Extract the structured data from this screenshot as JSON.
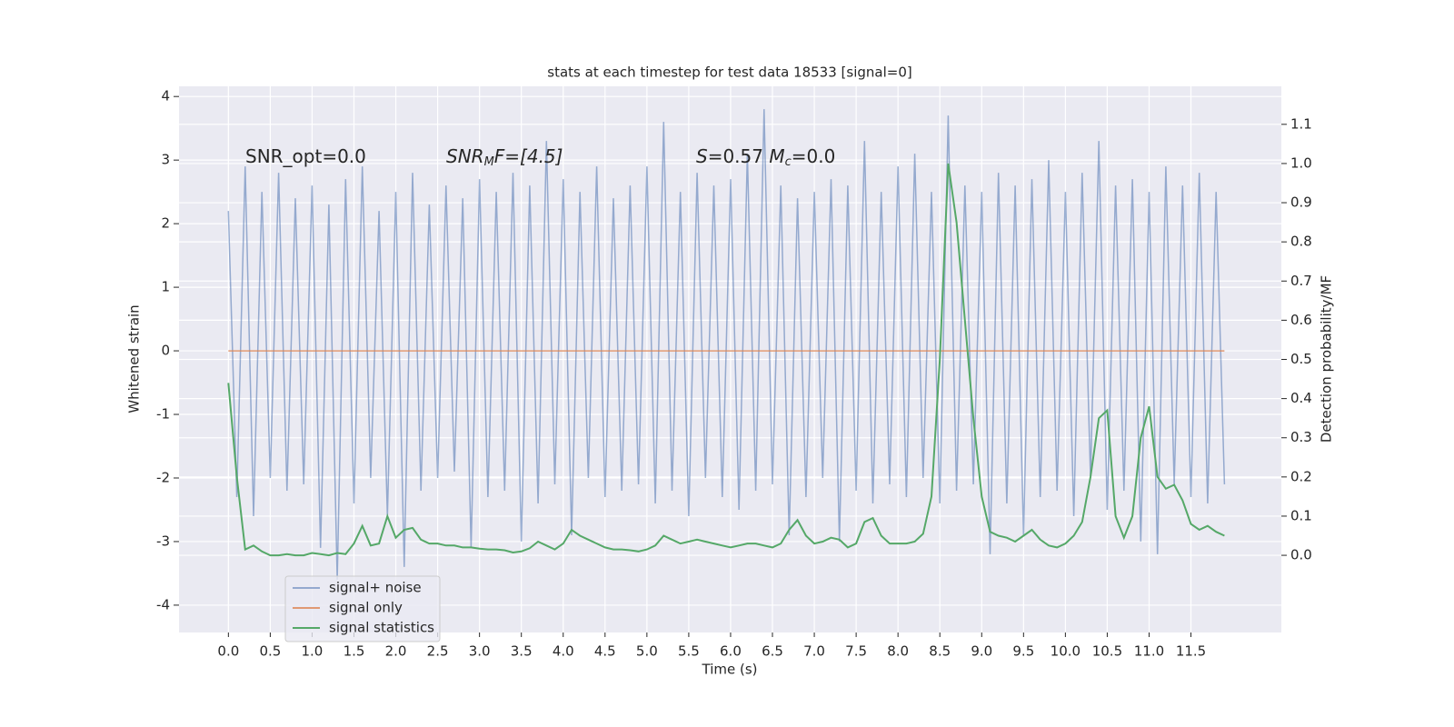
{
  "chart_data": {
    "type": "line",
    "title": "stats at each timestep for test data 18533 [signal=0]",
    "xlabel": "Time (s)",
    "ylabel": "Whitened strain",
    "y2label": "Detection probability/MF",
    "annotations": [
      {
        "parts": [
          "SNR_opt=0.0"
        ]
      },
      {
        "parts": [
          "SNR",
          "M",
          "F=[4.5]"
        ]
      },
      {
        "parts": [
          "S",
          "=0.57   ",
          "M",
          "c",
          "=0.0"
        ]
      }
    ],
    "xlim": [
      -0.59,
      12.58
    ],
    "ylim": [
      -4.43,
      4.16
    ],
    "y2lim": [
      -0.197,
      1.197
    ],
    "xticks": [
      {
        "value": 0,
        "label": "0.0"
      },
      0.5,
      {
        "value": 1,
        "label": "1.0"
      },
      1.5,
      {
        "value": 2,
        "label": "2.0"
      },
      2.5,
      {
        "value": 3,
        "label": "3.0"
      },
      3.5,
      {
        "value": 4,
        "label": "4.0"
      },
      4.5,
      {
        "value": 5,
        "label": "5.0"
      },
      5.5,
      {
        "value": 6,
        "label": "6.0"
      },
      6.5,
      {
        "value": 7,
        "label": "7.0"
      },
      7.5,
      {
        "value": 8,
        "label": "8.0"
      },
      8.5,
      {
        "value": 9,
        "label": "9.0"
      },
      9.5,
      {
        "value": 10,
        "label": "10.0"
      },
      10.5,
      {
        "value": 11,
        "label": "11.0"
      },
      11.5
    ],
    "yticks": [
      -4,
      -3,
      -2,
      -1,
      0,
      1,
      2,
      3,
      4
    ],
    "y2ticks": [
      {
        "value": 0,
        "label": "0.0"
      },
      0.1,
      0.2,
      0.3,
      0.4,
      0.5,
      0.6,
      0.7,
      0.8,
      0.9,
      {
        "value": 1,
        "label": "1.0"
      },
      1.1
    ],
    "grid": true,
    "legend_loc": "lower left",
    "x": [
      0,
      0.1,
      0.2,
      0.3,
      0.4,
      0.5,
      0.6,
      0.7,
      0.8,
      0.9,
      1,
      1.1,
      1.2,
      1.3,
      1.4,
      1.5,
      1.6,
      1.7,
      1.8,
      1.9,
      2,
      2.1,
      2.2,
      2.3,
      2.4,
      2.5,
      2.6,
      2.7,
      2.8,
      2.9,
      3,
      3.1,
      3.2,
      3.3,
      3.4,
      3.5,
      3.6,
      3.7,
      3.8,
      3.9,
      4,
      4.1,
      4.2,
      4.3,
      4.4,
      4.5,
      4.6,
      4.7,
      4.8,
      4.9,
      5,
      5.1,
      5.2,
      5.3,
      5.4,
      5.5,
      5.6,
      5.7,
      5.8,
      5.9,
      6,
      6.1,
      6.2,
      6.3,
      6.4,
      6.5,
      6.6,
      6.7,
      6.8,
      6.9,
      7,
      7.1,
      7.2,
      7.3,
      7.4,
      7.5,
      7.6,
      7.7,
      7.8,
      7.9,
      8,
      8.1,
      8.2,
      8.3,
      8.4,
      8.5,
      8.6,
      8.7,
      8.8,
      8.9,
      9,
      9.1,
      9.2,
      9.3,
      9.4,
      9.5,
      9.6,
      9.7,
      9.8,
      9.9,
      10,
      10.1,
      10.2,
      10.3,
      10.4,
      10.5,
      10.6,
      10.7,
      10.8,
      10.9,
      11,
      11.1,
      11.2,
      11.3,
      11.4,
      11.5,
      11.6,
      11.7,
      11.8,
      11.9
    ],
    "series": [
      {
        "name": "signal+ noise",
        "color": "#4c72b0",
        "opacity": 0.55,
        "values": [
          2.2,
          -2.3,
          2.9,
          -2.6,
          2.5,
          -2.0,
          2.8,
          -2.2,
          2.4,
          -2.1,
          2.6,
          -3.1,
          2.3,
          -3.6,
          2.7,
          -2.4,
          2.9,
          -2.0,
          2.2,
          -2.6,
          2.5,
          -3.4,
          2.8,
          -2.2,
          2.3,
          -2.0,
          2.6,
          -1.9,
          2.4,
          -3.1,
          2.7,
          -2.3,
          2.5,
          -2.2,
          2.8,
          -3.0,
          2.6,
          -2.4,
          3.3,
          -2.1,
          2.7,
          -2.9,
          2.5,
          -2.0,
          2.9,
          -2.3,
          2.4,
          -2.2,
          2.6,
          -2.1,
          2.9,
          -2.4,
          3.6,
          -2.2,
          2.5,
          -2.6,
          2.8,
          -2.0,
          2.6,
          -2.3,
          2.7,
          -2.5,
          3.1,
          -2.2,
          3.8,
          -2.1,
          2.6,
          -2.9,
          2.4,
          -2.3,
          2.5,
          -2.0,
          2.7,
          -3.0,
          2.6,
          -2.2,
          3.3,
          -2.4,
          2.5,
          -2.1,
          2.9,
          -2.3,
          3.1,
          -2.0,
          2.5,
          -2.4,
          3.7,
          -2.2,
          2.6,
          -2.1,
          2.5,
          -3.2,
          2.8,
          -2.4,
          2.6,
          -2.9,
          2.7,
          -2.3,
          3.0,
          -2.2,
          2.5,
          -2.6,
          2.8,
          -2.0,
          3.3,
          -2.5,
          2.6,
          -2.2,
          2.7,
          -3.0,
          2.5,
          -3.2,
          2.9,
          -2.1,
          2.6,
          -2.3,
          2.8,
          -2.4,
          2.5,
          -2.1
        ]
      },
      {
        "name": "signal only",
        "color": "#dd8452",
        "opacity": 0.8,
        "values": [
          0,
          0,
          0,
          0,
          0,
          0,
          0,
          0,
          0,
          0,
          0,
          0,
          0,
          0,
          0,
          0,
          0,
          0,
          0,
          0,
          0,
          0,
          0,
          0,
          0,
          0,
          0,
          0,
          0,
          0,
          0,
          0,
          0,
          0,
          0,
          0,
          0,
          0,
          0,
          0,
          0,
          0,
          0,
          0,
          0,
          0,
          0,
          0,
          0,
          0,
          0,
          0,
          0,
          0,
          0,
          0,
          0,
          0,
          0,
          0,
          0,
          0,
          0,
          0,
          0,
          0,
          0,
          0,
          0,
          0,
          0,
          0,
          0,
          0,
          0,
          0,
          0,
          0,
          0,
          0,
          0,
          0,
          0,
          0,
          0,
          0,
          0,
          0,
          0,
          0,
          0,
          0,
          0,
          0,
          0,
          0,
          0,
          0,
          0,
          0,
          0,
          0,
          0,
          0,
          0,
          0,
          0,
          0,
          0,
          0,
          0,
          0,
          0,
          0,
          0,
          0,
          0,
          0,
          0,
          0
        ]
      },
      {
        "name": "signal statistics",
        "color": "#55a868",
        "opacity": 1,
        "axis": "y2",
        "values": [
          0.44,
          0.2,
          0.015,
          0.025,
          0.01,
          0,
          0,
          0.003,
          0,
          0,
          0.006,
          0.003,
          0,
          0.006,
          0.003,
          0.03,
          0.075,
          0.025,
          0.03,
          0.1,
          0.045,
          0.065,
          0.07,
          0.04,
          0.03,
          0.03,
          0.025,
          0.025,
          0.02,
          0.02,
          0.017,
          0.015,
          0.015,
          0.013,
          0.007,
          0.01,
          0.018,
          0.035,
          0.025,
          0.015,
          0.03,
          0.065,
          0.05,
          0.04,
          0.03,
          0.02,
          0.015,
          0.015,
          0.013,
          0.01,
          0.015,
          0.025,
          0.05,
          0.04,
          0.03,
          0.035,
          0.04,
          0.035,
          0.03,
          0.025,
          0.02,
          0.025,
          0.03,
          0.03,
          0.025,
          0.02,
          0.03,
          0.065,
          0.09,
          0.05,
          0.03,
          0.035,
          0.045,
          0.04,
          0.02,
          0.03,
          0.085,
          0.095,
          0.05,
          0.03,
          0.03,
          0.03,
          0.035,
          0.055,
          0.15,
          0.5,
          1.0,
          0.85,
          0.6,
          0.35,
          0.15,
          0.06,
          0.05,
          0.045,
          0.035,
          0.05,
          0.065,
          0.04,
          0.025,
          0.02,
          0.03,
          0.05,
          0.085,
          0.2,
          0.35,
          0.37,
          0.1,
          0.045,
          0.1,
          0.3,
          0.38,
          0.2,
          0.17,
          0.18,
          0.14,
          0.08,
          0.065,
          0.075,
          0.06,
          0.05
        ]
      }
    ]
  }
}
